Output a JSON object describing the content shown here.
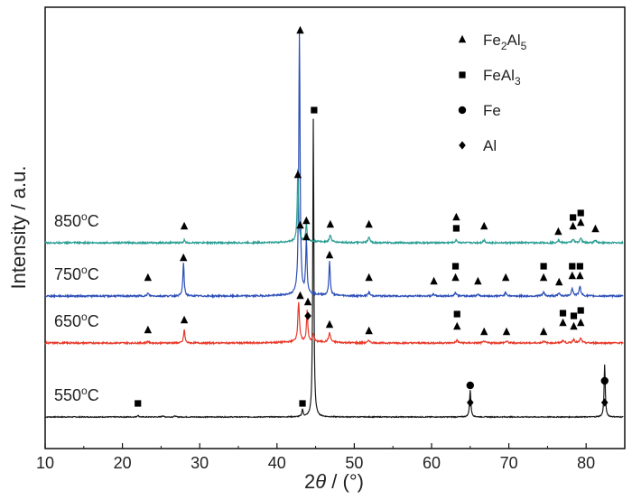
{
  "chart_data": {
    "type": "line",
    "xlabel_prefix": "2",
    "xlabel_theta": "θ",
    "xlabel_suffix": " / (°)",
    "ylabel": "Intensity / a.u.",
    "xlim": [
      10,
      85
    ],
    "xticks": [
      10,
      20,
      30,
      40,
      50,
      60,
      70,
      80
    ],
    "legend": {
      "placement": "top-right",
      "entries": [
        {
          "marker": "triangle",
          "base": "Fe",
          "sub1": "2",
          "mid": "Al",
          "sub2": "5"
        },
        {
          "marker": "square",
          "base": "FeAl",
          "sub1": "3",
          "mid": "",
          "sub2": ""
        },
        {
          "marker": "circle",
          "base": "Fe",
          "sub1": "",
          "mid": "",
          "sub2": ""
        },
        {
          "marker": "diamond",
          "base": "Al",
          "sub1": "",
          "mid": "",
          "sub2": ""
        }
      ]
    },
    "series": [
      {
        "label": "550°C",
        "label_main": "550",
        "label_unit": "C",
        "label_deg": "o",
        "color": "#1a1a1a",
        "baseline": 0,
        "noise": 0.5,
        "peaks": [
          [
            22.0,
            2,
            0.2
          ],
          [
            25.2,
            1.5,
            0.2
          ],
          [
            26.8,
            1.2,
            0.2
          ],
          [
            43.3,
            8,
            0.18
          ],
          [
            44.7,
            330,
            0.16
          ],
          [
            65.0,
            30,
            0.2
          ],
          [
            82.4,
            58,
            0.18
          ]
        ],
        "markers": [
          [
            22.0,
            15,
            "square"
          ],
          [
            43.3,
            15,
            "square"
          ],
          [
            65.0,
            16,
            "diamond"
          ],
          [
            65.0,
            35,
            "circle"
          ],
          [
            82.4,
            16,
            "diamond"
          ],
          [
            82.4,
            40,
            "circle"
          ]
        ]
      },
      {
        "label": "650°C",
        "label_main": "650",
        "label_unit": "C",
        "label_deg": "o",
        "color": "#e8392a",
        "baseline": 82,
        "noise": 0.9,
        "peaks": [
          [
            23.3,
            2,
            0.25
          ],
          [
            28.0,
            15,
            0.2
          ],
          [
            42.8,
            44,
            0.25
          ],
          [
            43.9,
            35,
            0.2
          ],
          [
            44.7,
            8,
            0.2
          ],
          [
            46.8,
            10,
            0.3
          ],
          [
            51.9,
            3,
            0.3
          ],
          [
            63.3,
            3,
            0.3
          ],
          [
            66.8,
            2,
            0.3
          ],
          [
            69.7,
            2,
            0.3
          ],
          [
            74.5,
            2,
            0.3
          ],
          [
            77.0,
            3,
            0.3
          ],
          [
            78.4,
            4,
            0.3
          ],
          [
            79.3,
            5,
            0.3
          ]
        ],
        "markers": [
          [
            23.3,
            14,
            "triangle"
          ],
          [
            28.0,
            25,
            "triangle"
          ],
          [
            43.0,
            52,
            "triangle"
          ],
          [
            44.0,
            45,
            "triangle"
          ],
          [
            44.0,
            30,
            "diamond"
          ],
          [
            46.8,
            20,
            "triangle"
          ],
          [
            51.9,
            13,
            "triangle"
          ],
          [
            63.3,
            18,
            "triangle"
          ],
          [
            63.3,
            32,
            "square"
          ],
          [
            66.8,
            12,
            "triangle"
          ],
          [
            69.7,
            12,
            "triangle"
          ],
          [
            74.5,
            12,
            "triangle"
          ],
          [
            77.0,
            22,
            "triangle"
          ],
          [
            77.0,
            33,
            "square"
          ],
          [
            78.4,
            18,
            "triangle"
          ],
          [
            78.4,
            30,
            "square"
          ],
          [
            79.3,
            22,
            "triangle"
          ],
          [
            79.3,
            36,
            "square"
          ]
        ]
      },
      {
        "label": "750°C",
        "label_main": "750",
        "label_unit": "C",
        "label_deg": "o",
        "color": "#2c4fb8",
        "baseline": 134,
        "noise": 0.9,
        "peaks": [
          [
            23.3,
            3,
            0.25
          ],
          [
            27.9,
            36,
            0.2
          ],
          [
            42.9,
            290,
            0.2
          ],
          [
            43.8,
            60,
            0.2
          ],
          [
            46.8,
            38,
            0.2
          ],
          [
            51.9,
            4,
            0.3
          ],
          [
            60.3,
            2,
            0.3
          ],
          [
            63.1,
            4,
            0.3
          ],
          [
            66.0,
            2,
            0.3
          ],
          [
            69.6,
            4,
            0.3
          ],
          [
            74.5,
            4,
            0.3
          ],
          [
            76.5,
            3,
            0.3
          ],
          [
            78.2,
            8,
            0.3
          ],
          [
            79.2,
            10,
            0.3
          ]
        ],
        "markers": [
          [
            23.3,
            20,
            "triangle"
          ],
          [
            27.9,
            42,
            "triangle"
          ],
          [
            43.0,
            78,
            "triangle"
          ],
          [
            43.8,
            65,
            "triangle"
          ],
          [
            46.8,
            45,
            "triangle"
          ],
          [
            51.9,
            20,
            "triangle"
          ],
          [
            60.3,
            16,
            "triangle"
          ],
          [
            63.1,
            20,
            "triangle"
          ],
          [
            63.1,
            33,
            "square"
          ],
          [
            66.0,
            16,
            "triangle"
          ],
          [
            69.6,
            20,
            "triangle"
          ],
          [
            74.5,
            20,
            "triangle"
          ],
          [
            74.5,
            33,
            "square"
          ],
          [
            76.5,
            15,
            "triangle"
          ],
          [
            78.2,
            22,
            "triangle"
          ],
          [
            78.2,
            33,
            "square"
          ],
          [
            79.2,
            22,
            "triangle"
          ],
          [
            79.2,
            33,
            "square"
          ]
        ]
      },
      {
        "label": "850°C",
        "label_main": "850",
        "label_unit": "C",
        "label_deg": "o",
        "color": "#2a9e94",
        "baseline": 193,
        "noise": 0.9,
        "peaks": [
          [
            28.0,
            3,
            0.2
          ],
          [
            42.7,
            80,
            0.2
          ],
          [
            43.8,
            20,
            0.2
          ],
          [
            46.9,
            8,
            0.25
          ],
          [
            51.9,
            6,
            0.3
          ],
          [
            63.2,
            3,
            0.3
          ],
          [
            66.8,
            3,
            0.3
          ],
          [
            76.4,
            3,
            0.3
          ],
          [
            78.3,
            4,
            0.3
          ],
          [
            79.3,
            5,
            0.3
          ],
          [
            81.2,
            3,
            0.3
          ]
        ],
        "markers": [
          [
            28.0,
            18,
            "triangle"
          ],
          [
            42.7,
            75,
            "triangle"
          ],
          [
            43.8,
            24,
            "triangle"
          ],
          [
            46.9,
            20,
            "triangle"
          ],
          [
            51.9,
            20,
            "triangle"
          ],
          [
            63.2,
            16,
            "square"
          ],
          [
            63.2,
            28,
            "triangle"
          ],
          [
            66.8,
            18,
            "triangle"
          ],
          [
            76.4,
            12,
            "triangle"
          ],
          [
            78.3,
            18,
            "triangle"
          ],
          [
            78.3,
            28,
            "square"
          ],
          [
            79.3,
            22,
            "triangle"
          ],
          [
            79.3,
            33,
            "square"
          ],
          [
            81.2,
            15,
            "triangle"
          ]
        ]
      },
      {
        "label": "",
        "label_main": "",
        "label_unit": "",
        "label_deg": "",
        "color": "#2c4fb8",
        "baseline": 134,
        "noise": 0,
        "peaks": [],
        "markers": [
          [
            43.0,
            294,
            "triangle"
          ]
        ],
        "hidden_line": true
      },
      {
        "label": "",
        "label_main": "",
        "label_unit": "",
        "label_deg": "",
        "color": "#1a1a1a",
        "baseline": 0,
        "noise": 0,
        "peaks": [],
        "markers": [
          [
            44.8,
            340,
            "square"
          ]
        ],
        "hidden_line": true
      }
    ]
  }
}
